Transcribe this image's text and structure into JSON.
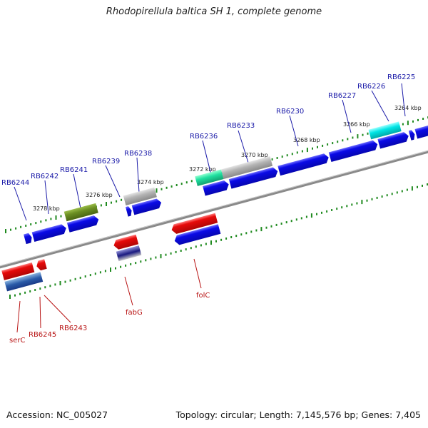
{
  "header": {
    "title": "Rhodopirellula baltica SH 1, complete genome"
  },
  "footer": {
    "accession": "Accession: NC_005027",
    "summary": "Topology: circular; Length: 7,145,576 bp; Genes: 7,405"
  },
  "colors": {
    "forward_gene": "#0a0ae6",
    "reverse_gene": "#e60a0a",
    "forward_label": "#1a1aa8",
    "reverse_label": "#b81414",
    "backbone": "#8a8a8a",
    "tick": "#1f8a1f",
    "pseudo_grey": "#b4b4b4",
    "olive": "#6b8e23",
    "cyan": "#00e5e5",
    "mint": "#20e0a0"
  },
  "scale_labels": [
    "3264 kbp",
    "3266 kbp",
    "3268 kbp",
    "3270 kbp",
    "3272 kbp",
    "3274 kbp",
    "3276 kbp",
    "3278 kbp"
  ],
  "forward_labels": [
    "RB6225",
    "RB6226",
    "RB6227",
    "RB6230",
    "RB6233",
    "RB6236",
    "RB6238",
    "RB6239",
    "RB6241",
    "RB6242",
    "RB6244"
  ],
  "reverse_labels": [
    "folC",
    "fabG",
    "RB6243",
    "RB6245",
    "serC"
  ]
}
